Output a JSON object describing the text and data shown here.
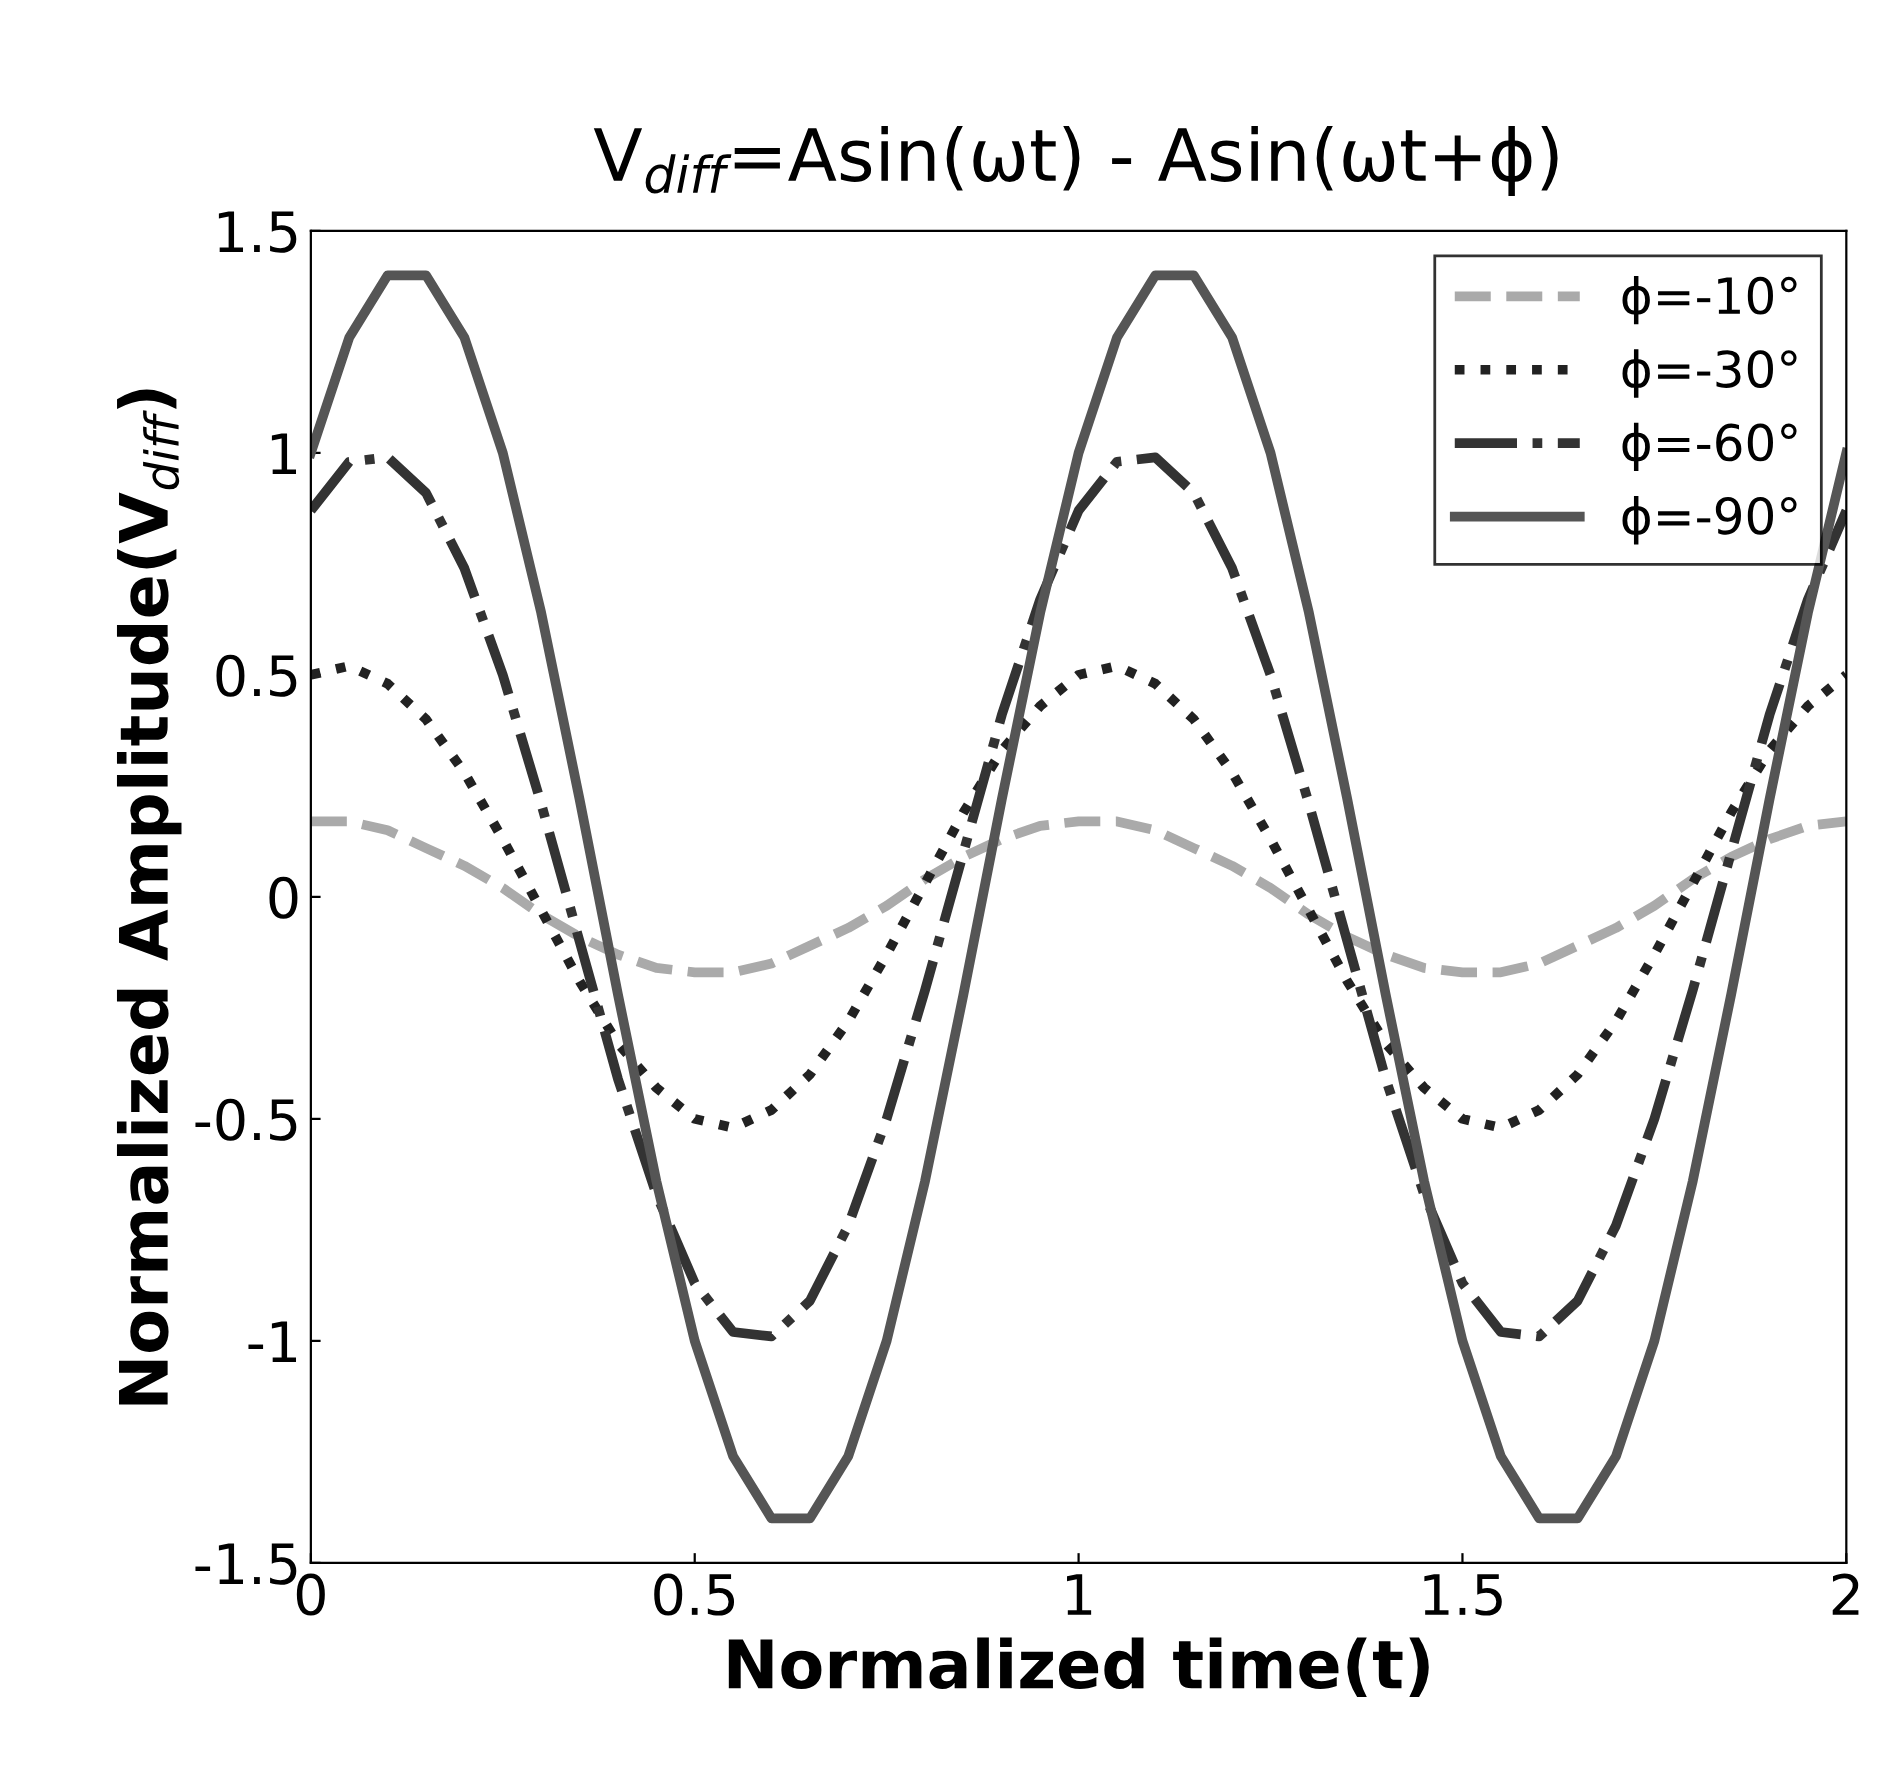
{
  "chart_data": {
    "type": "line",
    "title": "V$_{diff}$=Asin(ωt) - Asin(ωt+ϕ)",
    "xlabel": "Normalized time(t)",
    "ylabel": "Normalized Amplitude(V$_{diff}$)",
    "x": [
      0,
      0.05,
      0.1,
      0.15,
      0.2,
      0.25,
      0.3,
      0.35,
      0.4,
      0.45,
      0.5,
      0.55,
      0.6,
      0.65,
      0.7,
      0.75,
      0.8,
      0.85,
      0.9,
      0.95,
      1,
      1.05,
      1.1,
      1.15,
      1.2,
      1.25,
      1.3,
      1.35,
      1.4,
      1.45,
      1.5,
      1.55,
      1.6,
      1.65,
      1.7,
      1.75,
      1.8,
      1.85,
      1.9,
      1.95,
      2
    ],
    "series": [
      {
        "name": "ϕ=-10°",
        "color": "#aaaaaa",
        "line_style": "dashed",
        "values": [
          0.17,
          0.17,
          0.15,
          0.11,
          0.07,
          0.02,
          -0.04,
          -0.09,
          -0.13,
          -0.16,
          -0.17,
          -0.17,
          -0.15,
          -0.11,
          -0.07,
          -0.02,
          0.04,
          0.09,
          0.13,
          0.16,
          0.17,
          0.17,
          0.15,
          0.11,
          0.07,
          0.02,
          -0.04,
          -0.09,
          -0.13,
          -0.16,
          -0.17,
          -0.17,
          -0.15,
          -0.11,
          -0.07,
          -0.02,
          0.04,
          0.09,
          0.13,
          0.16,
          0.17
        ]
      },
      {
        "name": "ϕ=-30°",
        "color": "#222222",
        "line_style": "dotted",
        "values": [
          0.5,
          0.52,
          0.48,
          0.4,
          0.28,
          0.13,
          -0.03,
          -0.19,
          -0.33,
          -0.43,
          -0.5,
          -0.52,
          -0.48,
          -0.4,
          -0.28,
          -0.13,
          0.03,
          0.19,
          0.33,
          0.43,
          0.5,
          0.52,
          0.48,
          0.4,
          0.28,
          0.13,
          -0.03,
          -0.19,
          -0.33,
          -0.43,
          -0.5,
          -0.52,
          -0.48,
          -0.4,
          -0.28,
          -0.13,
          0.03,
          0.19,
          0.33,
          0.43,
          0.5
        ]
      },
      {
        "name": "ϕ=-60°",
        "color": "#333333",
        "line_style": "dashdot",
        "values": [
          0.87,
          0.98,
          0.99,
          0.91,
          0.74,
          0.5,
          0.21,
          -0.1,
          -0.41,
          -0.67,
          -0.87,
          -0.98,
          -0.99,
          -0.91,
          -0.74,
          -0.5,
          -0.21,
          0.1,
          0.41,
          0.67,
          0.87,
          0.98,
          0.99,
          0.91,
          0.74,
          0.5,
          0.21,
          -0.1,
          -0.41,
          -0.67,
          -0.87,
          -0.98,
          -0.99,
          -0.91,
          -0.74,
          -0.5,
          -0.21,
          0.1,
          0.41,
          0.67,
          0.87
        ]
      },
      {
        "name": "ϕ=-90°",
        "color": "#555555",
        "line_style": "solid",
        "values": [
          1.0,
          1.26,
          1.4,
          1.4,
          1.26,
          1.0,
          0.64,
          0.22,
          -0.22,
          -0.64,
          -1.0,
          -1.26,
          -1.4,
          -1.4,
          -1.26,
          -1.0,
          -0.64,
          -0.22,
          0.22,
          0.64,
          1.0,
          1.26,
          1.4,
          1.4,
          1.26,
          1.0,
          0.64,
          0.22,
          -0.22,
          -0.64,
          -1.0,
          -1.26,
          -1.4,
          -1.4,
          -1.26,
          -1.0,
          -0.64,
          -0.22,
          0.22,
          0.64,
          1.0
        ]
      }
    ],
    "xlim": [
      0,
      2
    ],
    "xticks": [
      0,
      0.5,
      1,
      1.5,
      2
    ],
    "ylim": [
      -1.5,
      1.5
    ],
    "yticks": [
      -1.5,
      -1,
      -0.5,
      0,
      0.5,
      1,
      1.5
    ],
    "legend": "top right",
    "grid": false
  }
}
